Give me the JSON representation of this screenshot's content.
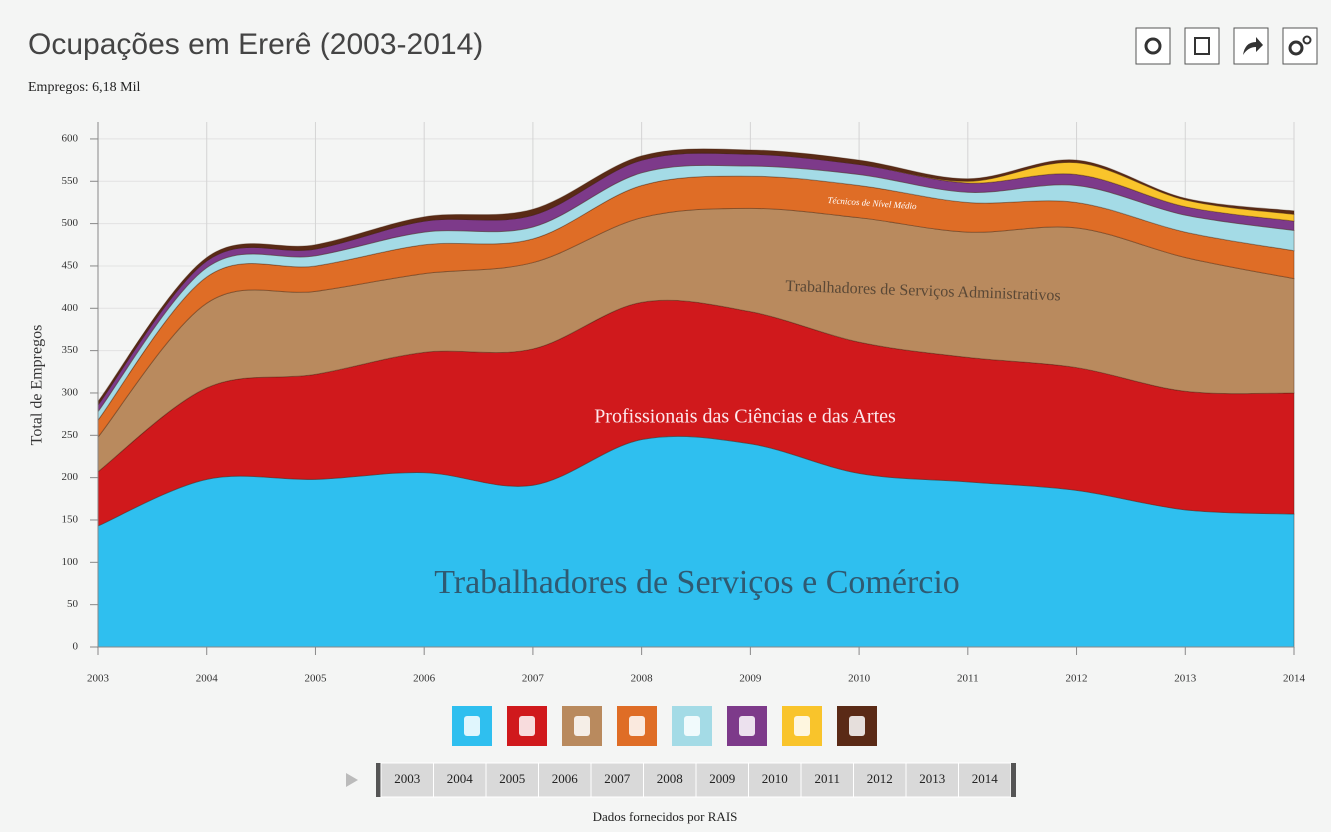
{
  "chart_data": {
    "type": "stacked_area",
    "title": "Ocupações em Ererê (2003-2014)",
    "subtitle": "Empregos: 6,18 Mil",
    "ylabel": "Total de Empregos",
    "source": "Dados fornecidos por RAIS",
    "x": [
      2003,
      2004,
      2005,
      2006,
      2007,
      2008,
      2009,
      2010,
      2011,
      2012,
      2013,
      2014
    ],
    "xlim": [
      2003,
      2014
    ],
    "xticks": [
      2003,
      2004,
      2005,
      2006,
      2007,
      2008,
      2009,
      2010,
      2011,
      2012,
      2013,
      2014
    ],
    "ylim": [
      0,
      620
    ],
    "yticks": [
      0,
      50,
      100,
      150,
      200,
      250,
      300,
      350,
      400,
      450,
      500,
      550,
      600
    ],
    "grid": true,
    "series": [
      {
        "name": "Trabalhadores de Serviços e Comércio",
        "color": "#2fbfef",
        "values": [
          143,
          198,
          198,
          206,
          191,
          245,
          240,
          205,
          195,
          185,
          162,
          157
        ]
      },
      {
        "name": "Profissionais das Ciências e das Artes",
        "color": "#d0191c",
        "values": [
          64,
          108,
          124,
          142,
          161,
          162,
          156,
          155,
          147,
          145,
          140,
          143
        ]
      },
      {
        "name": "Trabalhadores de Serviços Administrativos",
        "color": "#b98a5e",
        "values": [
          41,
          100,
          98,
          93,
          102,
          100,
          122,
          147,
          148,
          165,
          158,
          135
        ]
      },
      {
        "name": "Técnicos de Nível Médio",
        "color": "#df6d26",
        "values": [
          20,
          31,
          30,
          34,
          28,
          38,
          38,
          38,
          35,
          30,
          30,
          33
        ]
      },
      {
        "color": "#a4dbe6",
        "values": [
          10,
          11,
          12,
          15,
          14,
          15,
          12,
          13,
          12,
          20,
          20,
          24
        ]
      },
      {
        "color": "#7d3a8a",
        "values": [
          8,
          8,
          8,
          13,
          14,
          15,
          14,
          12,
          11,
          13,
          10,
          11
        ]
      },
      {
        "color": "#f9c42b",
        "values": [
          0,
          0,
          0,
          0,
          0,
          0,
          0,
          0,
          2,
          14,
          8,
          8
        ]
      },
      {
        "color": "#5a2a16",
        "values": [
          4,
          4,
          5,
          5,
          7,
          5,
          5,
          5,
          3,
          3,
          2,
          4
        ]
      }
    ],
    "timeline": [
      "2003",
      "2004",
      "2005",
      "2006",
      "2007",
      "2008",
      "2009",
      "2010",
      "2011",
      "2012",
      "2013",
      "2014"
    ]
  }
}
